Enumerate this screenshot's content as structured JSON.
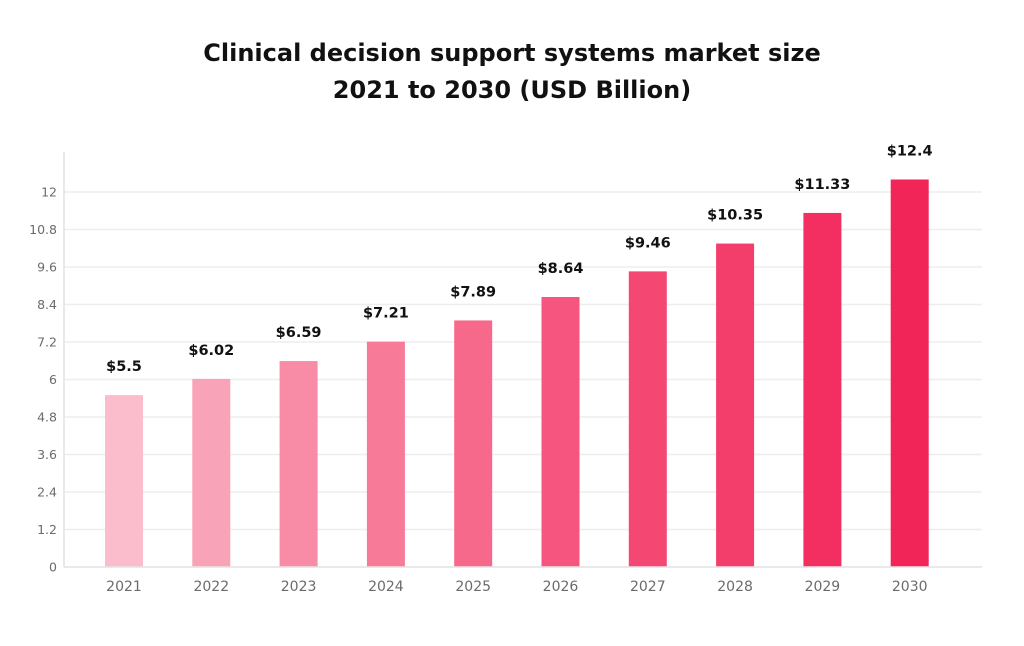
{
  "chart_data": {
    "type": "bar",
    "title": [
      "Clinical decision support systems market size",
      "2021 to 2030 (USD Billion)"
    ],
    "xlabel": "",
    "ylabel": "",
    "categories": [
      "2021",
      "2022",
      "2023",
      "2024",
      "2025",
      "2026",
      "2027",
      "2028",
      "2029",
      "2030"
    ],
    "values": [
      5.5,
      6.02,
      6.59,
      7.21,
      7.89,
      8.64,
      9.46,
      10.35,
      11.33,
      12.4
    ],
    "data_labels": [
      "$5.5",
      "$6.02",
      "$6.59",
      "$7.21",
      "$7.89",
      "$8.64",
      "$9.46",
      "$10.35",
      "$11.33",
      "$12.4"
    ],
    "ylim": [
      0,
      12
    ],
    "yticks": [
      0,
      1.2,
      2.4,
      3.6,
      4.8,
      6,
      7.2,
      8.4,
      9.6,
      10.8,
      12
    ],
    "ytick_labels": [
      "0",
      "1.2",
      "2.4",
      "3.6",
      "4.8",
      "6",
      "7.2",
      "8.4",
      "9.6",
      "10.8",
      "12"
    ],
    "grid": true,
    "legend": "none",
    "colors": [
      "#fbbccc",
      "#f9a3b8",
      "#f88ca6",
      "#f77a98",
      "#f6698b",
      "#f5557e",
      "#f44873",
      "#f33d6b",
      "#f32f62",
      "#f22558"
    ]
  }
}
